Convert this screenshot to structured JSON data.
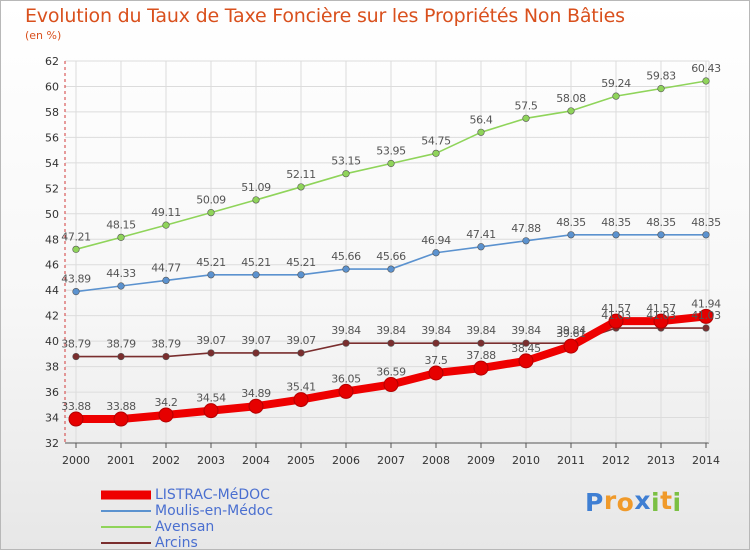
{
  "title": "Evolution du Taux de Taxe Foncière sur les Propriétés Non Bâties",
  "subtitle": "(en %)",
  "logo": {
    "letters": [
      "P",
      "r",
      "o",
      "x",
      "i",
      "t",
      "i"
    ],
    "colors": [
      "#3f7fd3",
      "#f09a2a",
      "#f09a2a",
      "#3f7fd3",
      "#7bc043",
      "#f09a2a",
      "#7bc043"
    ]
  },
  "chart_data": {
    "type": "line",
    "title": "Evolution du Taux de Taxe Foncière sur les Propriétés Non Bâties",
    "ylabel": "(en %)",
    "xlabel": "",
    "x": [
      "2000",
      "2001",
      "2002",
      "2003",
      "2004",
      "2005",
      "2006",
      "2007",
      "2008",
      "2009",
      "2010",
      "2011",
      "2012",
      "2013",
      "2014"
    ],
    "ylim": [
      32,
      62
    ],
    "yticks": [
      32,
      34,
      36,
      38,
      40,
      42,
      44,
      46,
      48,
      50,
      52,
      54,
      56,
      58,
      60,
      62
    ],
    "grid": true,
    "legend_position": "bottom-left",
    "series": [
      {
        "name": "LISTRAC-MéDOC",
        "color": "#ee0000",
        "values": [
          33.88,
          33.88,
          34.2,
          34.54,
          34.89,
          35.41,
          36.05,
          36.59,
          37.5,
          37.88,
          38.45,
          39.61,
          41.57,
          41.57,
          41.94
        ],
        "labels": [
          "33.88",
          "33.88",
          "34.2",
          "34.54",
          "34.89",
          "35.41",
          "36.05",
          "36.59",
          "37.5",
          "37.88",
          "38.45",
          "39.61",
          "41.57",
          "41.57",
          "41.94"
        ]
      },
      {
        "name": "Moulis-en-Médoc",
        "color": "#5b92cf",
        "values": [
          43.89,
          44.33,
          44.77,
          45.21,
          45.21,
          45.21,
          45.66,
          45.66,
          46.94,
          47.41,
          47.88,
          48.35,
          48.35,
          48.35,
          48.35
        ],
        "labels": [
          "43.89",
          "44.33",
          "44.77",
          "45.21",
          "45.21",
          "45.21",
          "45.66",
          "45.66",
          "46.94",
          "47.41",
          "47.88",
          "48.35",
          "48.35",
          "48.35",
          "48.35"
        ]
      },
      {
        "name": "Avensan",
        "color": "#8fd45a",
        "values": [
          47.21,
          48.15,
          49.11,
          50.09,
          51.09,
          52.11,
          53.15,
          53.95,
          54.75,
          56.4,
          57.5,
          58.08,
          59.24,
          59.83,
          60.43
        ],
        "labels": [
          "47.21",
          "48.15",
          "49.11",
          "50.09",
          "51.09",
          "52.11",
          "53.15",
          "53.95",
          "54.75",
          "56.4",
          "57.5",
          "58.08",
          "59.24",
          "59.83",
          "60.43"
        ]
      },
      {
        "name": "Arcins",
        "color": "#7a2e2e",
        "values": [
          38.79,
          38.79,
          38.79,
          39.07,
          39.07,
          39.07,
          39.84,
          39.84,
          39.84,
          39.84,
          39.84,
          39.84,
          41.03,
          41.03,
          41.03
        ],
        "labels": [
          "38.79",
          "38.79",
          "38.79",
          "39.07",
          "39.07",
          "39.07",
          "39.84",
          "39.84",
          "39.84",
          "39.84",
          "39.84",
          "39.84",
          "41.03",
          "41.03",
          "41.03"
        ]
      }
    ]
  }
}
